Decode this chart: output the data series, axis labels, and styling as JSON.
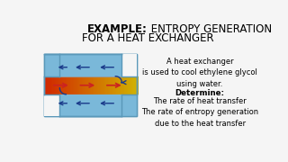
{
  "title_bold": "EXAMPLE:",
  "title_rest_line1": " ENTROPY GENERATION",
  "title_line2": "FOR A HEAT EXCHANGER",
  "description": "A heat exchanger\nis used to cool ethylene glycol\nusing water.",
  "determine_label": "Determine:",
  "determine_items": "The rate of heat transfer\nThe rate of entropy generation\ndue to the heat transfer",
  "bg_color": "#f5f5f5",
  "title_fontsize": 8.5,
  "body_fontsize": 6.0,
  "blue_shell": "#7ab8d9",
  "blue_shell_edge": "#5a98b9",
  "red_color": "#cc2222",
  "blue_arrow": "#1a3a8a",
  "gray_tube_edge": "#999999"
}
